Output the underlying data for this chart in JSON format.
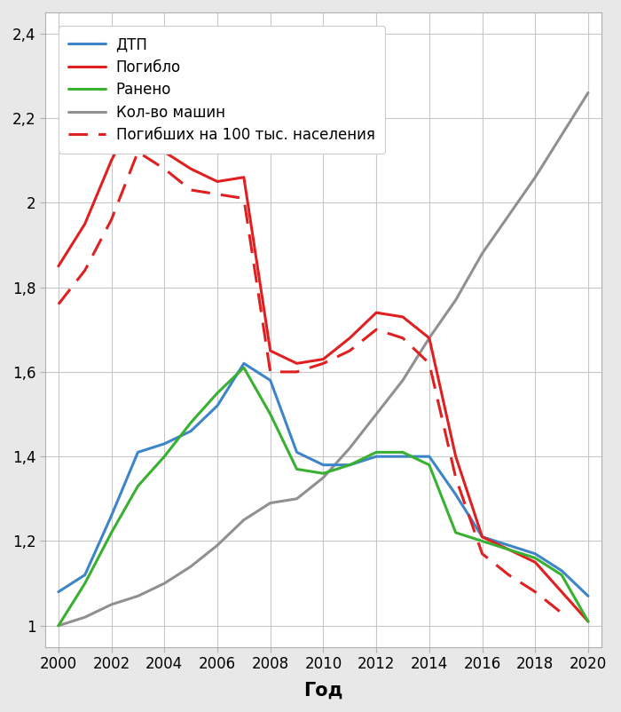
{
  "years": [
    2000,
    2001,
    2002,
    2003,
    2004,
    2005,
    2006,
    2007,
    2008,
    2009,
    2010,
    2011,
    2012,
    2013,
    2014,
    2015,
    2016,
    2017,
    2018,
    2019,
    2020
  ],
  "dtp": [
    1.08,
    1.12,
    1.26,
    1.41,
    1.43,
    1.46,
    1.52,
    1.62,
    1.58,
    1.41,
    1.38,
    1.38,
    1.4,
    1.4,
    1.4,
    1.31,
    1.21,
    1.19,
    1.17,
    1.13,
    1.07
  ],
  "pogiblo": [
    1.85,
    1.95,
    2.1,
    2.22,
    2.12,
    2.08,
    2.05,
    2.06,
    1.65,
    1.62,
    1.63,
    1.68,
    1.74,
    1.73,
    1.68,
    1.4,
    1.21,
    1.18,
    1.15,
    1.08,
    1.01
  ],
  "raneno": [
    1.0,
    1.1,
    1.22,
    1.33,
    1.4,
    1.48,
    1.55,
    1.61,
    1.5,
    1.37,
    1.36,
    1.38,
    1.41,
    1.41,
    1.38,
    1.22,
    1.2,
    1.18,
    1.16,
    1.12,
    1.01
  ],
  "kol_mashin": [
    1.0,
    1.02,
    1.05,
    1.07,
    1.1,
    1.14,
    1.19,
    1.25,
    1.29,
    1.3,
    1.35,
    1.42,
    1.5,
    1.58,
    1.68,
    1.77,
    1.88,
    1.97,
    2.06,
    2.16,
    2.26
  ],
  "pogibshikh_100": [
    1.76,
    1.84,
    1.96,
    2.12,
    2.08,
    2.03,
    2.02,
    2.01,
    1.6,
    1.6,
    1.62,
    1.65,
    1.7,
    1.68,
    1.62,
    1.35,
    1.17,
    1.12,
    1.08,
    1.03,
    null
  ],
  "ylim": [
    0.95,
    2.45
  ],
  "yticks": [
    1.0,
    1.2,
    1.4,
    1.6,
    1.8,
    2.0,
    2.2,
    2.4
  ],
  "ytick_labels": [
    "1",
    "1,2",
    "1,4",
    "1,6",
    "1,8",
    "2",
    "2,2",
    "2,4"
  ],
  "xticks": [
    2000,
    2002,
    2004,
    2006,
    2008,
    2010,
    2012,
    2014,
    2016,
    2018,
    2020
  ],
  "xlabel": "Год",
  "legend_labels": [
    "ДТП",
    "Погибло",
    "Ранено",
    "Кол-во машин",
    "Погибших на 100 тыс. населения"
  ],
  "colors": {
    "dtp": "#3d85c8",
    "pogiblo": "#e02020",
    "raneno": "#38b030",
    "kol_mashin": "#909090",
    "pogibshikh_100": "#e02020"
  },
  "fig_bg_color": "#e8e8e8",
  "plot_bg_color": "#ffffff",
  "grid_color": "#c8c8c8",
  "figsize": [
    7.0,
    8.02
  ],
  "dpi": 100
}
